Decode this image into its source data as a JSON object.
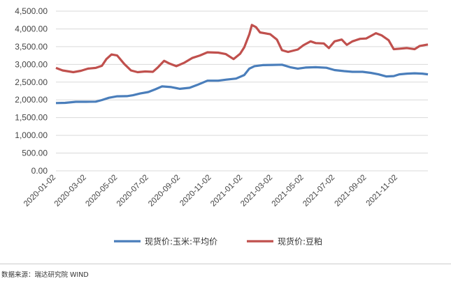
{
  "chart_data": {
    "type": "line",
    "ylim": [
      0,
      4500
    ],
    "y_ticks": [
      "0.00",
      "500.00",
      "1,000.00",
      "1,500.00",
      "2,000.00",
      "2,500.00",
      "3,000.00",
      "3,500.00",
      "4,000.00",
      "4,500.00"
    ],
    "x_ticks": [
      "2020-01-02",
      "2020-03-02",
      "2020-05-02",
      "2020-07-02",
      "2020-09-02",
      "2020-11-02",
      "2021-01-02",
      "2021-03-02",
      "2021-05-02",
      "2021-07-02",
      "2021-09-02",
      "2021-11-02"
    ],
    "grid": "horizontal",
    "legend_position": "bottom",
    "x_start": "2020-01-02",
    "x_end": "2021-12-31",
    "series": [
      {
        "name": "现货价:玉米:平均价",
        "color": "#4a7ebb",
        "points": [
          [
            "2020-01-02",
            1910
          ],
          [
            "2020-01-20",
            1915
          ],
          [
            "2020-02-10",
            1945
          ],
          [
            "2020-03-01",
            1945
          ],
          [
            "2020-03-20",
            1950
          ],
          [
            "2020-04-01",
            1995
          ],
          [
            "2020-04-15",
            2060
          ],
          [
            "2020-05-01",
            2100
          ],
          [
            "2020-05-20",
            2105
          ],
          [
            "2020-06-01",
            2130
          ],
          [
            "2020-06-15",
            2180
          ],
          [
            "2020-07-01",
            2220
          ],
          [
            "2020-07-15",
            2300
          ],
          [
            "2020-07-28",
            2380
          ],
          [
            "2020-08-15",
            2360
          ],
          [
            "2020-09-01",
            2310
          ],
          [
            "2020-09-20",
            2340
          ],
          [
            "2020-10-05",
            2420
          ],
          [
            "2020-10-25",
            2540
          ],
          [
            "2020-11-15",
            2540
          ],
          [
            "2020-12-01",
            2570
          ],
          [
            "2020-12-20",
            2600
          ],
          [
            "2021-01-05",
            2700
          ],
          [
            "2021-01-15",
            2880
          ],
          [
            "2021-01-25",
            2950
          ],
          [
            "2021-02-10",
            2980
          ],
          [
            "2021-03-01",
            2985
          ],
          [
            "2021-03-20",
            2990
          ],
          [
            "2021-04-05",
            2920
          ],
          [
            "2021-04-20",
            2880
          ],
          [
            "2021-05-05",
            2910
          ],
          [
            "2021-05-25",
            2920
          ],
          [
            "2021-06-15",
            2905
          ],
          [
            "2021-07-01",
            2840
          ],
          [
            "2021-07-20",
            2810
          ],
          [
            "2021-08-05",
            2790
          ],
          [
            "2021-08-25",
            2790
          ],
          [
            "2021-09-10",
            2760
          ],
          [
            "2021-09-25",
            2720
          ],
          [
            "2021-10-10",
            2660
          ],
          [
            "2021-10-25",
            2670
          ],
          [
            "2021-11-05",
            2720
          ],
          [
            "2021-11-20",
            2740
          ],
          [
            "2021-12-05",
            2750
          ],
          [
            "2021-12-20",
            2740
          ],
          [
            "2021-12-31",
            2720
          ]
        ]
      },
      {
        "name": "现货价:豆粕",
        "color": "#c0504d",
        "points": [
          [
            "2020-01-02",
            2900
          ],
          [
            "2020-01-15",
            2830
          ],
          [
            "2020-02-05",
            2780
          ],
          [
            "2020-02-20",
            2820
          ],
          [
            "2020-03-05",
            2880
          ],
          [
            "2020-03-20",
            2900
          ],
          [
            "2020-04-01",
            2960
          ],
          [
            "2020-04-10",
            3150
          ],
          [
            "2020-04-20",
            3280
          ],
          [
            "2020-05-01",
            3250
          ],
          [
            "2020-05-15",
            3010
          ],
          [
            "2020-05-28",
            2830
          ],
          [
            "2020-06-10",
            2780
          ],
          [
            "2020-06-25",
            2800
          ],
          [
            "2020-07-10",
            2790
          ],
          [
            "2020-07-20",
            2920
          ],
          [
            "2020-08-01",
            3100
          ],
          [
            "2020-08-12",
            3020
          ],
          [
            "2020-08-25",
            2950
          ],
          [
            "2020-09-10",
            3050
          ],
          [
            "2020-09-25",
            3180
          ],
          [
            "2020-10-10",
            3250
          ],
          [
            "2020-10-25",
            3340
          ],
          [
            "2020-11-15",
            3330
          ],
          [
            "2020-11-30",
            3290
          ],
          [
            "2020-12-15",
            3150
          ],
          [
            "2020-12-28",
            3300
          ],
          [
            "2021-01-05",
            3480
          ],
          [
            "2021-01-15",
            3850
          ],
          [
            "2021-01-20",
            4110
          ],
          [
            "2021-01-28",
            4050
          ],
          [
            "2021-02-05",
            3900
          ],
          [
            "2021-02-25",
            3850
          ],
          [
            "2021-03-10",
            3700
          ],
          [
            "2021-03-20",
            3400
          ],
          [
            "2021-04-01",
            3350
          ],
          [
            "2021-04-20",
            3420
          ],
          [
            "2021-05-01",
            3540
          ],
          [
            "2021-05-15",
            3650
          ],
          [
            "2021-05-25",
            3600
          ],
          [
            "2021-06-10",
            3590
          ],
          [
            "2021-06-20",
            3460
          ],
          [
            "2021-07-01",
            3650
          ],
          [
            "2021-07-15",
            3700
          ],
          [
            "2021-07-25",
            3550
          ],
          [
            "2021-08-05",
            3650
          ],
          [
            "2021-08-20",
            3720
          ],
          [
            "2021-09-01",
            3730
          ],
          [
            "2021-09-10",
            3800
          ],
          [
            "2021-09-20",
            3880
          ],
          [
            "2021-10-01",
            3820
          ],
          [
            "2021-10-15",
            3680
          ],
          [
            "2021-10-25",
            3430
          ],
          [
            "2021-11-05",
            3440
          ],
          [
            "2021-11-20",
            3460
          ],
          [
            "2021-12-05",
            3430
          ],
          [
            "2021-12-15",
            3520
          ],
          [
            "2021-12-31",
            3560
          ]
        ]
      }
    ]
  },
  "source_text": "数据来源：瑞达研究院 WIND"
}
